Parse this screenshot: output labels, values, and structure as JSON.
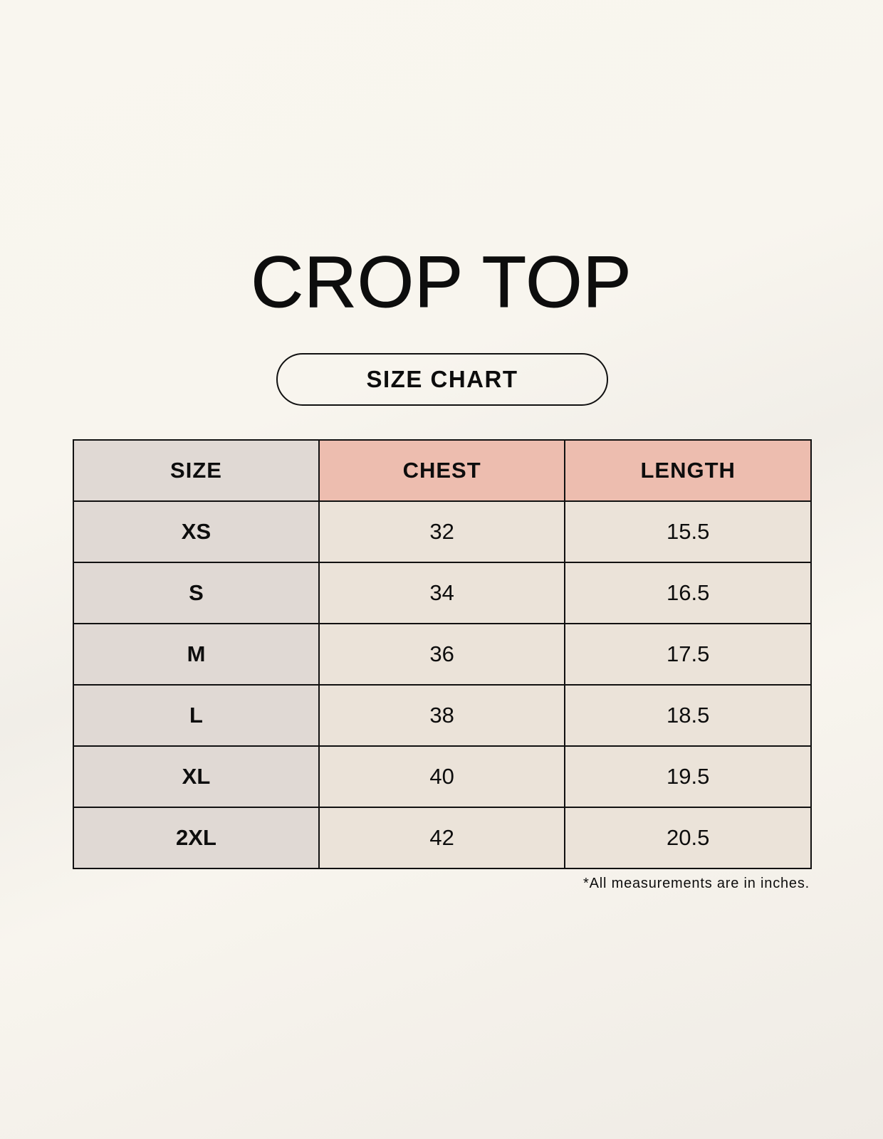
{
  "title": "CROP TOP",
  "subtitle": "SIZE CHART",
  "table": {
    "headers": [
      "SIZE",
      "CHEST",
      "LENGTH"
    ],
    "rows": [
      [
        "XS",
        "32",
        "15.5"
      ],
      [
        "S",
        "34",
        "16.5"
      ],
      [
        "M",
        "36",
        "17.5"
      ],
      [
        "L",
        "38",
        "18.5"
      ],
      [
        "XL",
        "40",
        "19.5"
      ],
      [
        "2XL",
        "42",
        "20.5"
      ]
    ]
  },
  "footnote": "*All measurements are in inches.",
  "colors": {
    "size_column": "#e0d9d4",
    "header_accent": "#edbdaf",
    "cell": "#ebe3d9"
  }
}
